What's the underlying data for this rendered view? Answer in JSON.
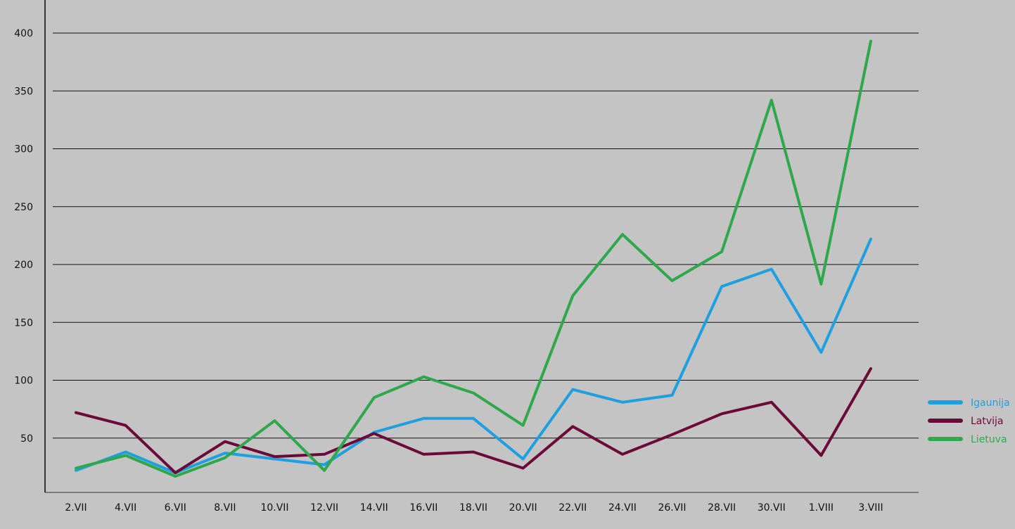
{
  "chart_data": {
    "type": "line",
    "title": "",
    "xlabel": "",
    "ylabel": "",
    "categories": [
      "2.VII",
      "4.VII",
      "6.VII",
      "8.VII",
      "10.VII",
      "12.VII",
      "14.VII",
      "16.VII",
      "18.VII",
      "20.VII",
      "22.VII",
      "24.VII",
      "26.VII",
      "28.VII",
      "30.VII",
      "1.VIII",
      "3.VIII"
    ],
    "y_ticks": [
      50,
      100,
      150,
      200,
      250,
      300,
      350,
      400
    ],
    "ylim": [
      0,
      410
    ],
    "grid": true,
    "legend_position": "right",
    "series": [
      {
        "name": "Igaunija",
        "color": "#1e9fe0",
        "values": [
          22,
          38,
          20,
          37,
          32,
          27,
          55,
          67,
          67,
          32,
          92,
          81,
          87,
          181,
          196,
          124,
          222
        ]
      },
      {
        "name": "Latvija",
        "color": "#6b0a3a",
        "values": [
          72,
          61,
          20,
          47,
          34,
          36,
          54,
          36,
          38,
          24,
          60,
          36,
          53,
          71,
          81,
          35,
          110
        ]
      },
      {
        "name": "Lietuva",
        "color": "#2ea84a",
        "values": [
          24,
          35,
          17,
          33,
          65,
          22,
          85,
          103,
          89,
          61,
          173,
          226,
          186,
          211,
          342,
          183,
          393
        ]
      }
    ]
  }
}
